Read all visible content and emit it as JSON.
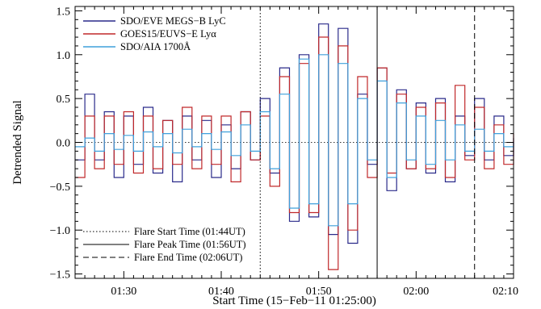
{
  "chart_data": {
    "type": "line",
    "step": true,
    "xlabel": "Start Time (15−Feb−11 01:25:00)",
    "ylabel": "Detrended Signal",
    "xlim": [
      0,
      45
    ],
    "ylim": [
      -1.55,
      1.55
    ],
    "x_unit": "minutes after 01:25:00",
    "x_ticks": [
      {
        "value": 5,
        "label": "01:30"
      },
      {
        "value": 15,
        "label": "01:40"
      },
      {
        "value": 25,
        "label": "01:50"
      },
      {
        "value": 35,
        "label": "02:00"
      },
      {
        "value": 45,
        "label": "02:10"
      }
    ],
    "y_ticks": [
      {
        "value": -1.5,
        "label": "−1.5"
      },
      {
        "value": -1.0,
        "label": "−1.0"
      },
      {
        "value": -0.5,
        "label": "−0.5"
      },
      {
        "value": 0.0,
        "label": "0.0"
      },
      {
        "value": 0.5,
        "label": "0.5"
      },
      {
        "value": 1.0,
        "label": "1.0"
      },
      {
        "value": 1.5,
        "label": "1.5"
      }
    ],
    "zero_line": true,
    "series": [
      {
        "name": "SDO/EVE MEGS−B LyC",
        "color": "#2a2a8a",
        "x": [
          0,
          1,
          2,
          3,
          4,
          5,
          6,
          7,
          8,
          9,
          10,
          11,
          12,
          13,
          14,
          15,
          16,
          17,
          18,
          19,
          20,
          21,
          22,
          23,
          24,
          25,
          26,
          27,
          28,
          29,
          30,
          31,
          32,
          33,
          34,
          35,
          36,
          37,
          38,
          39,
          40,
          41,
          42,
          43,
          44,
          45
        ],
        "y": [
          -0.2,
          0.55,
          -0.2,
          0.35,
          -0.4,
          0.3,
          -0.25,
          0.4,
          -0.35,
          0.25,
          -0.45,
          0.3,
          -0.2,
          0.25,
          -0.4,
          0.2,
          -0.3,
          0.35,
          -0.2,
          0.5,
          -0.35,
          0.85,
          -0.9,
          1.0,
          -0.85,
          1.35,
          -1.05,
          1.3,
          -1.15,
          0.55,
          -0.25,
          0.85,
          -0.55,
          0.6,
          -0.3,
          0.45,
          -0.35,
          0.5,
          -0.45,
          0.3,
          -0.15,
          0.5,
          -0.2,
          0.3,
          -0.15,
          0.05
        ]
      },
      {
        "name": "GOES15/EUVS−E Lyα",
        "color": "#c0282a",
        "x": [
          0,
          1,
          2,
          3,
          4,
          5,
          6,
          7,
          8,
          9,
          10,
          11,
          12,
          13,
          14,
          15,
          16,
          17,
          18,
          19,
          20,
          21,
          22,
          23,
          24,
          25,
          26,
          27,
          28,
          29,
          30,
          31,
          32,
          33,
          34,
          35,
          36,
          37,
          38,
          39,
          40,
          41,
          42,
          43,
          44,
          45
        ],
        "y": [
          -0.4,
          0.3,
          -0.3,
          0.3,
          -0.25,
          0.35,
          -0.35,
          0.3,
          -0.3,
          0.25,
          -0.25,
          0.4,
          -0.3,
          0.3,
          -0.25,
          0.3,
          -0.45,
          0.35,
          -0.2,
          0.3,
          -0.5,
          0.75,
          -0.8,
          0.9,
          -0.8,
          1.2,
          -1.45,
          1.1,
          -1.0,
          0.75,
          -0.4,
          0.85,
          -0.35,
          0.55,
          -0.3,
          0.4,
          -0.3,
          0.45,
          -0.4,
          0.65,
          -0.2,
          0.4,
          -0.3,
          0.2,
          -0.25,
          0.1
        ]
      },
      {
        "name": "SDO/AIA 1700Å",
        "color": "#3ea0dc",
        "x": [
          0,
          1,
          2,
          3,
          4,
          5,
          6,
          7,
          8,
          9,
          10,
          11,
          12,
          13,
          14,
          15,
          16,
          17,
          18,
          19,
          20,
          21,
          22,
          23,
          24,
          25,
          26,
          27,
          28,
          29,
          30,
          31,
          32,
          33,
          34,
          35,
          36,
          37,
          38,
          39,
          40,
          41,
          42,
          43,
          44,
          45
        ],
        "y": [
          -0.05,
          0.05,
          -0.1,
          0.1,
          -0.08,
          0.08,
          -0.1,
          0.12,
          -0.05,
          0.1,
          -0.12,
          0.15,
          -0.05,
          0.1,
          -0.08,
          0.12,
          -0.15,
          0.2,
          -0.1,
          0.35,
          -0.3,
          0.55,
          -0.75,
          0.95,
          -0.7,
          1.0,
          -0.95,
          0.9,
          -0.7,
          0.5,
          -0.2,
          0.7,
          -0.4,
          0.45,
          -0.2,
          0.3,
          -0.25,
          0.25,
          -0.2,
          0.2,
          -0.1,
          0.15,
          -0.1,
          0.1,
          -0.05,
          0.0
        ]
      }
    ],
    "vlines": [
      {
        "x": 19,
        "style": "dotted",
        "label": "Flare Start Time (01:44UT)"
      },
      {
        "x": 31,
        "style": "solid",
        "label": "Flare Peak Time (01:56UT)"
      },
      {
        "x": 41,
        "style": "dashed",
        "label": "Flare End Time (02:06UT)"
      }
    ],
    "legend_position": "top-left",
    "vline_legend_position": "bottom-left"
  }
}
